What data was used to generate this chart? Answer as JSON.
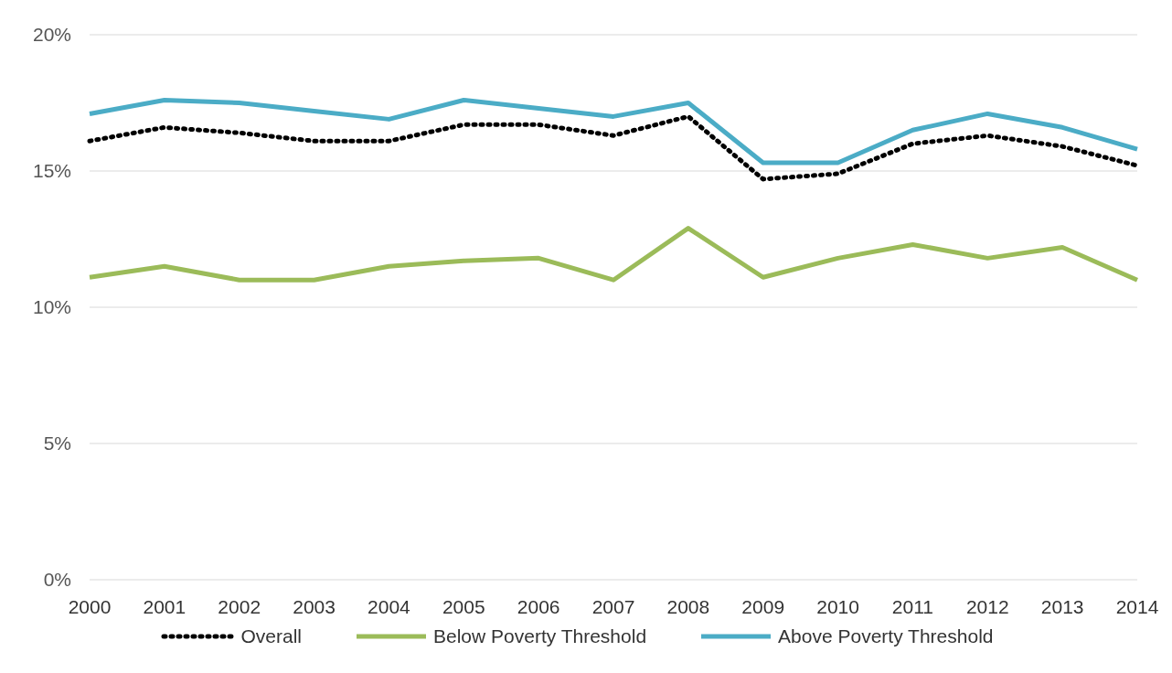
{
  "chart_data": {
    "type": "line",
    "categories": [
      "2000",
      "2001",
      "2002",
      "2003",
      "2004",
      "2005",
      "2006",
      "2007",
      "2008",
      "2009",
      "2010",
      "2011",
      "2012",
      "2013",
      "2014"
    ],
    "series": [
      {
        "name": "Overall",
        "color": "#000000",
        "line_style": "dotted",
        "values": [
          16.1,
          16.6,
          16.4,
          16.1,
          16.1,
          16.7,
          16.7,
          16.3,
          17.0,
          14.7,
          14.9,
          16.0,
          16.3,
          15.9,
          15.2
        ]
      },
      {
        "name": "Below Poverty Threshold",
        "color": "#9bbb59",
        "line_style": "solid",
        "values": [
          11.1,
          11.5,
          11.0,
          11.0,
          11.5,
          11.7,
          11.8,
          11.0,
          12.9,
          11.1,
          11.8,
          12.3,
          11.8,
          12.2,
          11.0
        ]
      },
      {
        "name": "Above Poverty Threshold",
        "color": "#4bacc6",
        "line_style": "solid",
        "values": [
          17.1,
          17.6,
          17.5,
          17.2,
          16.9,
          17.6,
          17.3,
          17.0,
          17.5,
          15.3,
          15.3,
          16.5,
          17.1,
          16.6,
          15.8
        ]
      }
    ],
    "ylim": [
      0,
      20
    ],
    "yticks": [
      {
        "value": 0,
        "label": "0%"
      },
      {
        "value": 5,
        "label": "5%"
      },
      {
        "value": 10,
        "label": "10%"
      },
      {
        "value": 15,
        "label": "15%"
      },
      {
        "value": 20,
        "label": "20%"
      }
    ],
    "grid": "y",
    "legend": "bottom",
    "marker": "none"
  }
}
